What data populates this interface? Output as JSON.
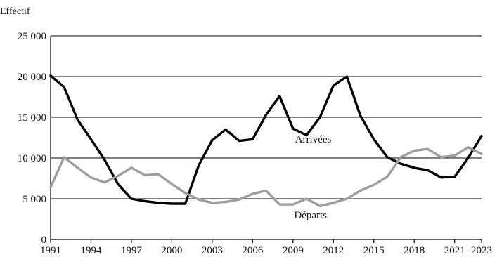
{
  "chart_data": {
    "type": "line",
    "ylabel": "Effectif",
    "xlabel": "",
    "xlim": [
      1991,
      2023
    ],
    "ylim": [
      0,
      25000
    ],
    "yticks": [
      0,
      5000,
      10000,
      15000,
      20000,
      25000
    ],
    "ytick_labels": [
      "0",
      "5 000",
      "10 000",
      "15 000",
      "20 000",
      "25 000"
    ],
    "xticks": [
      1991,
      1994,
      1997,
      2000,
      2003,
      2006,
      2009,
      2012,
      2015,
      2018,
      2021,
      2023
    ],
    "xtick_labels": [
      "1991",
      "1994",
      "1997",
      "2000",
      "2003",
      "2006",
      "2009",
      "2012",
      "2015",
      "2018",
      "2021",
      "2023"
    ],
    "grid": true,
    "x": [
      1991,
      1992,
      1993,
      1994,
      1995,
      1996,
      1997,
      1998,
      1999,
      2000,
      2001,
      2002,
      2003,
      2004,
      2005,
      2006,
      2007,
      2008,
      2009,
      2010,
      2011,
      2012,
      2013,
      2014,
      2015,
      2016,
      2017,
      2018,
      2019,
      2020,
      2021,
      2022,
      2023
    ],
    "series": [
      {
        "name": "Arrivées",
        "color": "#000000",
        "values": [
          20100,
          18700,
          14700,
          12300,
          9800,
          6800,
          5000,
          4700,
          4500,
          4400,
          4400,
          9100,
          12200,
          13500,
          12100,
          12300,
          15300,
          17600,
          13600,
          12800,
          15000,
          18900,
          20000,
          15200,
          12300,
          10100,
          9300,
          8800,
          8500,
          7600,
          7700,
          10000,
          12700
        ]
      },
      {
        "name": "Départs",
        "color": "#9e9e9e",
        "values": [
          6400,
          10100,
          8800,
          7600,
          7000,
          7800,
          8800,
          7900,
          8000,
          6800,
          5700,
          4900,
          4500,
          4600,
          4900,
          5600,
          6000,
          4300,
          4300,
          5000,
          4100,
          4500,
          5000,
          6000,
          6700,
          7700,
          10100,
          10900,
          11100,
          10100,
          10300,
          11300,
          10500
        ]
      }
    ]
  }
}
